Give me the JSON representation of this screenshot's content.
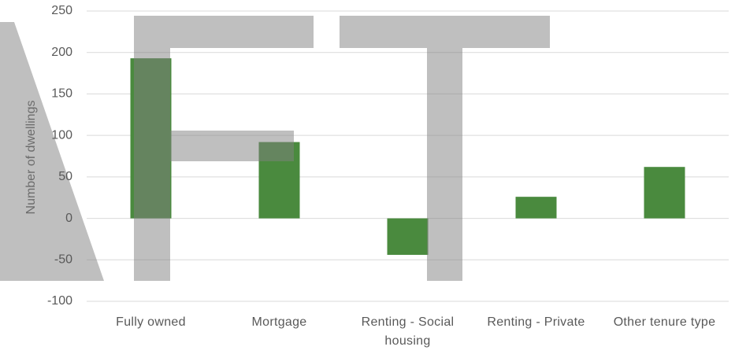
{
  "chart_data": {
    "type": "bar",
    "y_label": "Number of dwellings",
    "categories": [
      "Fully owned",
      "Mortgage",
      "Renting - Social housing",
      "Renting - Private",
      "Other tenure type"
    ],
    "values": [
      193,
      92,
      -44,
      26,
      62
    ],
    "color": "#4a8a3e",
    "ylim": [
      -100,
      250
    ],
    "yticks": [
      -100,
      -50,
      0,
      50,
      100,
      150,
      200,
      250
    ],
    "grid": true
  }
}
